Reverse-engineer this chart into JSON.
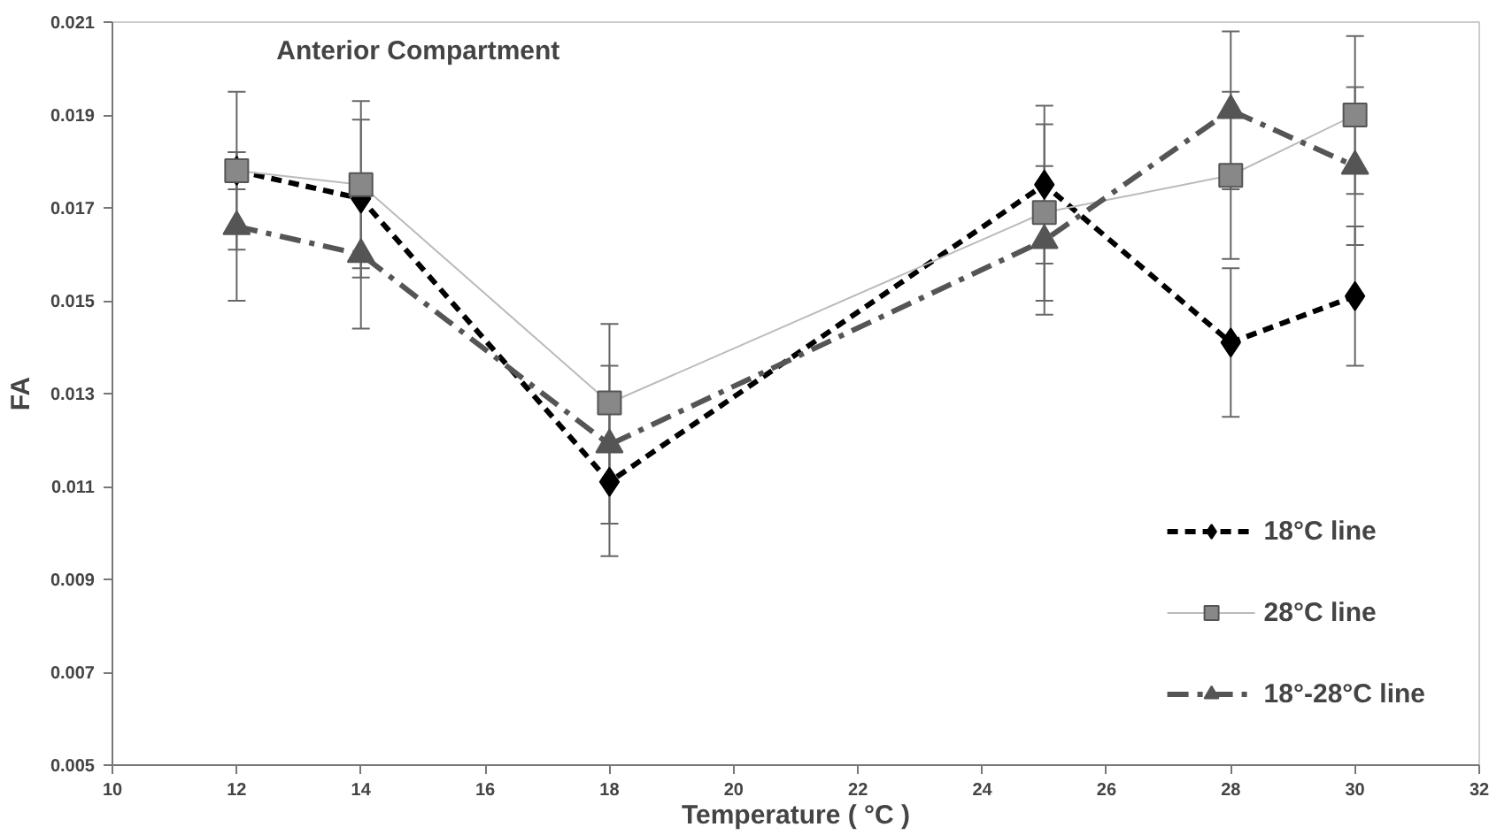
{
  "chart_data": {
    "type": "line",
    "title": "Anterior Compartment",
    "xlabel": "Temperature ( °C )",
    "ylabel": "FA",
    "x": [
      12,
      14,
      18,
      25,
      28,
      30
    ],
    "series": [
      {
        "name": "18°C line",
        "color": "#000000",
        "marker": "diamond",
        "line_style": "dashed",
        "values": [
          0.0178,
          0.0172,
          0.0111,
          0.0175,
          0.0141,
          0.0151
        ],
        "errors": [
          0.0004,
          0.0017,
          0.0016,
          0.0017,
          0.0016,
          0.0015
        ]
      },
      {
        "name": "28°C line",
        "color": "#888888",
        "marker": "square",
        "line_style": "solid",
        "values": [
          0.0178,
          0.0175,
          0.0128,
          0.0169,
          0.0177,
          0.019
        ],
        "errors": [
          0.0017,
          0.0018,
          0.0017,
          0.0019,
          0.0018,
          0.0017
        ]
      },
      {
        "name": "18°-28°C line",
        "color": "#555555",
        "marker": "triangle",
        "line_style": "dashed",
        "values": [
          0.0166,
          0.016,
          0.0119,
          0.0163,
          0.0191,
          0.0179
        ],
        "errors": [
          0.0016,
          0.0016,
          0.0017,
          0.0016,
          0.0017,
          0.0017
        ]
      }
    ],
    "xlim": [
      10,
      32
    ],
    "xticks": [
      10,
      12,
      14,
      16,
      18,
      20,
      22,
      24,
      26,
      28,
      30,
      32
    ],
    "ylim": [
      0.005,
      0.021
    ],
    "yticks": [
      0.005,
      0.007,
      0.009,
      0.011,
      0.013,
      0.015,
      0.017,
      0.019,
      0.021
    ],
    "legend": "bottom right",
    "grid": false
  }
}
